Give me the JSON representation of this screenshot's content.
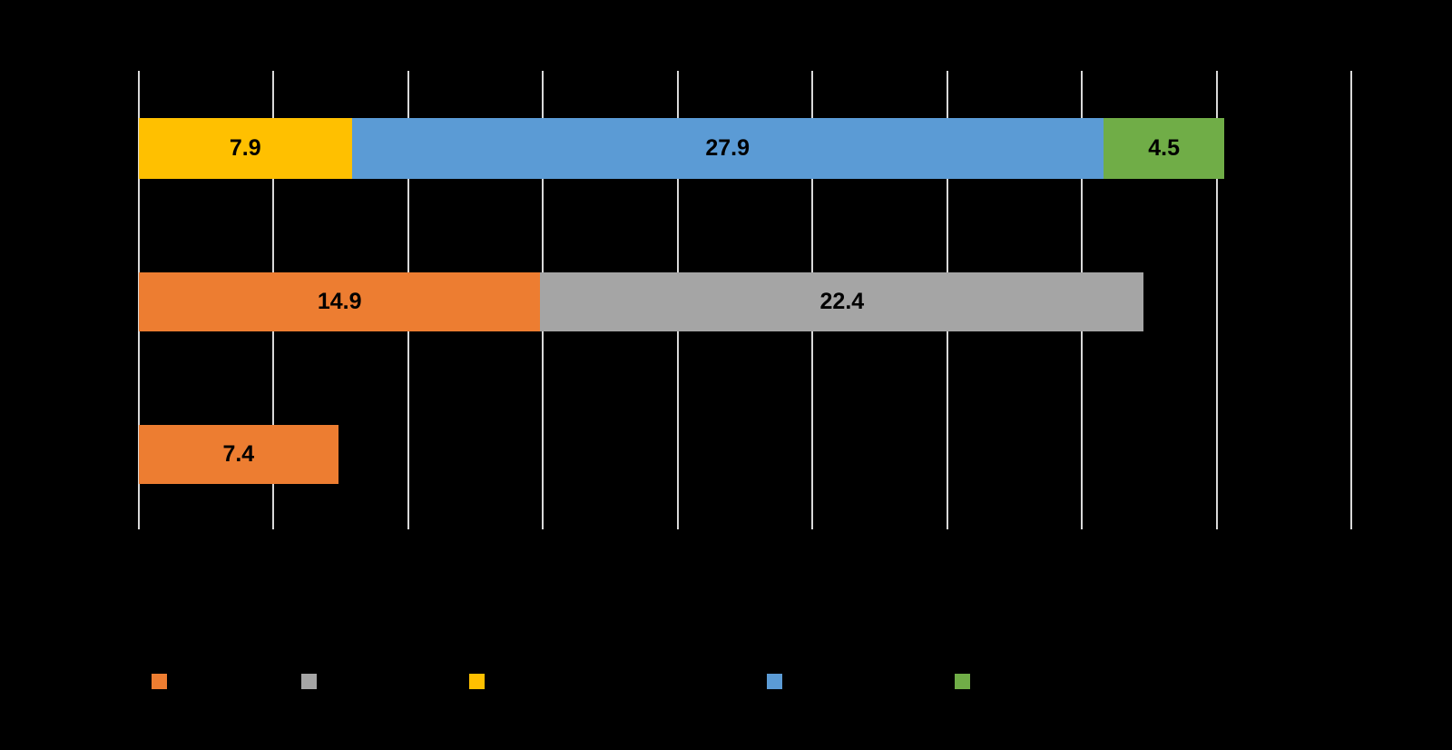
{
  "chart_data": {
    "type": "bar",
    "orientation": "horizontal",
    "stacked": true,
    "title": "",
    "xlabel": "",
    "ylabel": "",
    "background_color": "#000000",
    "gridline_color": "#D9D9D9",
    "data_label_color": "#000000",
    "x_axis": {
      "min": 0,
      "max": 45,
      "gridline_step": 5,
      "tick_labels_visible": false
    },
    "categories": [
      "",
      "",
      ""
    ],
    "rows": [
      {
        "segments": [
          {
            "series": "yellow",
            "color": "#FFC000",
            "value": 7.9,
            "label": "7.9"
          },
          {
            "series": "blue",
            "color": "#5B9BD5",
            "value": 27.9,
            "label": "27.9"
          },
          {
            "series": "green",
            "color": "#70AD47",
            "value": 4.5,
            "label": "4.5"
          }
        ]
      },
      {
        "segments": [
          {
            "series": "orange",
            "color": "#ED7D31",
            "value": 14.9,
            "label": "14.9"
          },
          {
            "series": "gray",
            "color": "#A5A5A5",
            "value": 22.4,
            "label": "22.4"
          }
        ]
      },
      {
        "segments": [
          {
            "series": "orange",
            "color": "#ED7D31",
            "value": 7.4,
            "label": "7.4"
          }
        ]
      }
    ],
    "series": [
      {
        "name": "series-orange",
        "color": "#ED7D31",
        "values": [
          0,
          14.9,
          7.4
        ]
      },
      {
        "name": "series-gray",
        "color": "#A5A5A5",
        "values": [
          0,
          22.4,
          0
        ]
      },
      {
        "name": "series-yellow",
        "color": "#FFC000",
        "values": [
          7.9,
          0,
          0
        ]
      },
      {
        "name": "series-blue",
        "color": "#5B9BD5",
        "values": [
          27.9,
          0,
          0
        ]
      },
      {
        "name": "series-green",
        "color": "#70AD47",
        "values": [
          4.5,
          0,
          0
        ]
      }
    ],
    "legend": {
      "position": "bottom",
      "labels_visible": false,
      "items": [
        {
          "name": "legend-orange",
          "color": "#ED7D31"
        },
        {
          "name": "legend-gray",
          "color": "#A5A5A5"
        },
        {
          "name": "legend-yellow",
          "color": "#FFC000"
        },
        {
          "name": "legend-blue",
          "color": "#5B9BD5"
        },
        {
          "name": "legend-green",
          "color": "#70AD47"
        }
      ]
    }
  }
}
